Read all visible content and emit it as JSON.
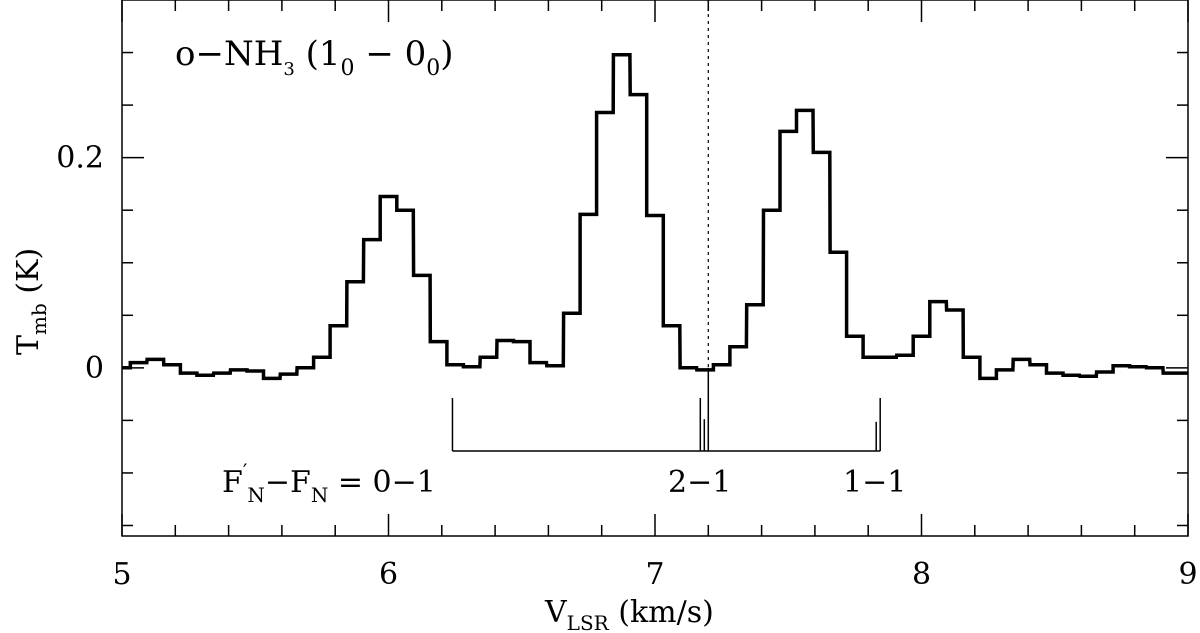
{
  "chart_data": {
    "type": "line",
    "title": {
      "main": "o−NH",
      "sub3": "3",
      "paren_open": " (1",
      "sub0a": "0",
      "dash": " − 0",
      "sub0b": "0",
      "paren_close": ")"
    },
    "xlabel": {
      "main": "V",
      "sub": "LSR",
      "rest": " (km/s)"
    },
    "ylabel": {
      "main": "T",
      "sub": "mb",
      "rest": " (K)"
    },
    "xlim": [
      5,
      9
    ],
    "ylim": [
      -0.16,
      0.35
    ],
    "x_ticks": [
      "5",
      "6",
      "7",
      "8",
      "9"
    ],
    "y_ticks": [
      "0",
      "0.2"
    ],
    "vline_x": 7.2,
    "hfs_label": {
      "main": "F",
      "prime": "′",
      "sub1": "N",
      "mid": "−F",
      "sub2": "N",
      "rest": " =  0−1"
    },
    "hfs_labels": [
      "2−1",
      "1−1"
    ],
    "hfs_lines": [
      {
        "x": 6.24,
        "strength": 1.0
      },
      {
        "x": 7.17,
        "strength": 1.0
      },
      {
        "x": 7.185,
        "strength": 0.6
      },
      {
        "x": 7.83,
        "strength": 0.55
      },
      {
        "x": 7.845,
        "strength": 1.0
      }
    ],
    "series": [
      {
        "x": [
          5.0,
          5.062,
          5.125,
          5.188,
          5.25,
          5.312,
          5.375,
          5.438,
          5.5,
          5.562,
          5.625,
          5.688,
          5.75,
          5.812,
          5.875,
          5.938,
          6.0,
          6.062,
          6.125,
          6.188,
          6.25,
          6.312,
          6.375,
          6.438,
          6.5,
          6.562,
          6.625,
          6.688,
          6.75,
          6.812,
          6.875,
          6.938,
          7.0,
          7.062,
          7.125,
          7.188,
          7.25,
          7.312,
          7.375,
          7.438,
          7.5,
          7.562,
          7.625,
          7.688,
          7.75,
          7.812,
          7.875,
          7.938,
          8.0,
          8.062,
          8.125,
          8.188,
          8.25,
          8.312,
          8.375,
          8.438,
          8.5,
          8.562,
          8.625,
          8.688,
          8.75,
          8.812,
          8.875,
          8.938,
          9.0
        ],
        "y": [
          0.0,
          0.005,
          0.008,
          0.003,
          -0.005,
          -0.007,
          -0.005,
          -0.002,
          -0.003,
          -0.01,
          -0.006,
          0.0,
          0.01,
          0.04,
          0.082,
          0.122,
          0.163,
          0.15,
          0.088,
          0.025,
          0.003,
          0.001,
          0.01,
          0.026,
          0.025,
          0.005,
          0.002,
          0.052,
          0.146,
          0.243,
          0.298,
          0.26,
          0.145,
          0.04,
          0.0,
          -0.002,
          0.003,
          0.02,
          0.06,
          0.15,
          0.225,
          0.245,
          0.205,
          0.11,
          0.03,
          0.01,
          0.01,
          0.012,
          0.03,
          0.063,
          0.055,
          0.01,
          -0.01,
          -0.002,
          0.008,
          0.003,
          -0.005,
          -0.007,
          -0.008,
          -0.004,
          0.002,
          0.001,
          0.0,
          -0.005,
          -0.005
        ]
      }
    ],
    "grid": false
  }
}
